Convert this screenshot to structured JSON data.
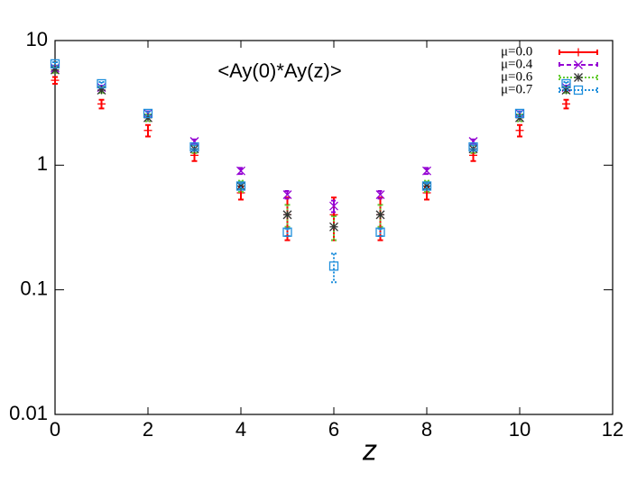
{
  "chart_data": {
    "type": "errorbar",
    "title": "<Ay(0)*Ay(z)>",
    "xlabel": "z",
    "xlim": [
      0,
      12
    ],
    "xticks": [
      0,
      2,
      4,
      6,
      8,
      10,
      12
    ],
    "ylim": [
      0.01,
      10
    ],
    "yticks": [
      10,
      1,
      0.1,
      0.01
    ],
    "log_y": true,
    "legend": "upper right",
    "x": [
      0,
      1,
      2,
      3,
      4,
      5,
      6,
      7,
      8,
      9,
      10,
      11
    ],
    "series": [
      {
        "name": "μ=0.0",
        "color": "#ff0000",
        "marker": "plus",
        "dash": "solid",
        "values": [
          4.8,
          3.1,
          1.9,
          1.2,
          0.6,
          0.4,
          0.4,
          0.4,
          0.6,
          1.2,
          1.9,
          3.1
        ],
        "errors": [
          0.3,
          0.25,
          0.2,
          0.12,
          0.07,
          0.15,
          0.15,
          0.15,
          0.07,
          0.12,
          0.2,
          0.25
        ]
      },
      {
        "name": "μ=0.4",
        "color": "#9400d3",
        "marker": "x",
        "dash": "dashed",
        "values": [
          6.0,
          4.2,
          2.6,
          1.55,
          0.9,
          0.58,
          0.47,
          0.58,
          0.9,
          1.55,
          2.6,
          4.2
        ],
        "errors": [
          0.2,
          0.15,
          0.1,
          0.06,
          0.05,
          0.04,
          0.05,
          0.04,
          0.05,
          0.06,
          0.1,
          0.15
        ]
      },
      {
        "name": "μ=0.6",
        "color": "#66cc33",
        "marker": "star",
        "dash": "dotted",
        "values": [
          5.8,
          4.0,
          2.4,
          1.35,
          0.68,
          0.4,
          0.32,
          0.4,
          0.68,
          1.35,
          2.4,
          4.0
        ],
        "errors": [
          0.3,
          0.2,
          0.15,
          0.1,
          0.07,
          0.08,
          0.07,
          0.08,
          0.07,
          0.1,
          0.15,
          0.2
        ]
      },
      {
        "name": "μ=0.7",
        "color": "#1f8fdc",
        "marker": "square",
        "dash": "dotted",
        "values": [
          6.5,
          4.5,
          2.6,
          1.4,
          0.68,
          0.29,
          0.155,
          0.29,
          0.68,
          1.4,
          2.6,
          4.5
        ],
        "errors": [
          0.2,
          0.15,
          0.1,
          0.06,
          0.04,
          0.02,
          0.04,
          0.02,
          0.04,
          0.06,
          0.1,
          0.15
        ]
      }
    ]
  }
}
